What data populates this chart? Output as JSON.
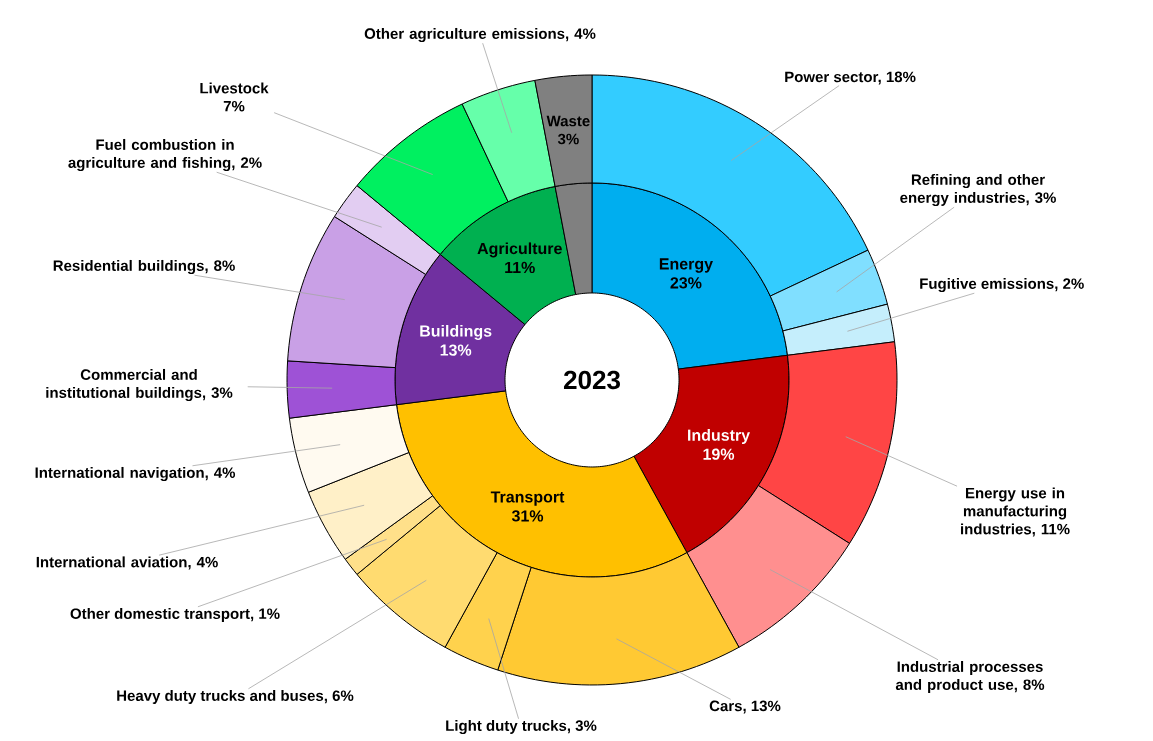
{
  "chart_data": [
    {
      "type": "donut",
      "title": "2023",
      "categories": [
        "Energy",
        "Industry",
        "Transport",
        "Buildings",
        "Agriculture",
        null
      ],
      "values": [
        23,
        19,
        31,
        13,
        11,
        3
      ],
      "colors": [
        "#00aeef",
        "#c00000",
        "#ffc000",
        "#7030a0",
        "#00b050",
        "#808080"
      ],
      "value_labels": [
        "23%",
        "19%",
        "31%",
        "13%",
        "11%",
        null
      ]
    },
    {
      "type": "donut",
      "categories": [
        "Power sector, 18%",
        "Refining and other energy industries, 3%",
        "Fugitive emissions, 2%",
        "Energy use in manufacturing industries, 11%",
        "Industrial processes and product use, 8%",
        "Cars, 13%",
        "Light duty trucks, 3%",
        "Heavy duty trucks and buses, 6%",
        "Other domestic transport, 1%",
        "International aviation, 4%",
        "International navigation, 4%",
        "Commercial and institutional buildings, 3%",
        "Residential buildings, 8%",
        "Fuel combustion in agriculture and fishing, 2%",
        "Livestock 7%",
        "Other agriculture emissions, 4%",
        "Waste 3%"
      ],
      "values": [
        18,
        3,
        2,
        11,
        8,
        13,
        3,
        6,
        1,
        4,
        4,
        3,
        8,
        2,
        7,
        4,
        3
      ],
      "colors": [
        "#33ccff",
        "#80dfff",
        "#c5eefc",
        "#ff4545",
        "#ff8f8f",
        "#ffc933",
        "#ffd24d",
        "#ffdb70",
        "#ffe08a",
        "#fff0c8",
        "#fffaf0",
        "#9e52d6",
        "#c9a0e6",
        "#e2cdf2",
        "#00f060",
        "#66ffaa",
        "#808080"
      ]
    }
  ]
}
